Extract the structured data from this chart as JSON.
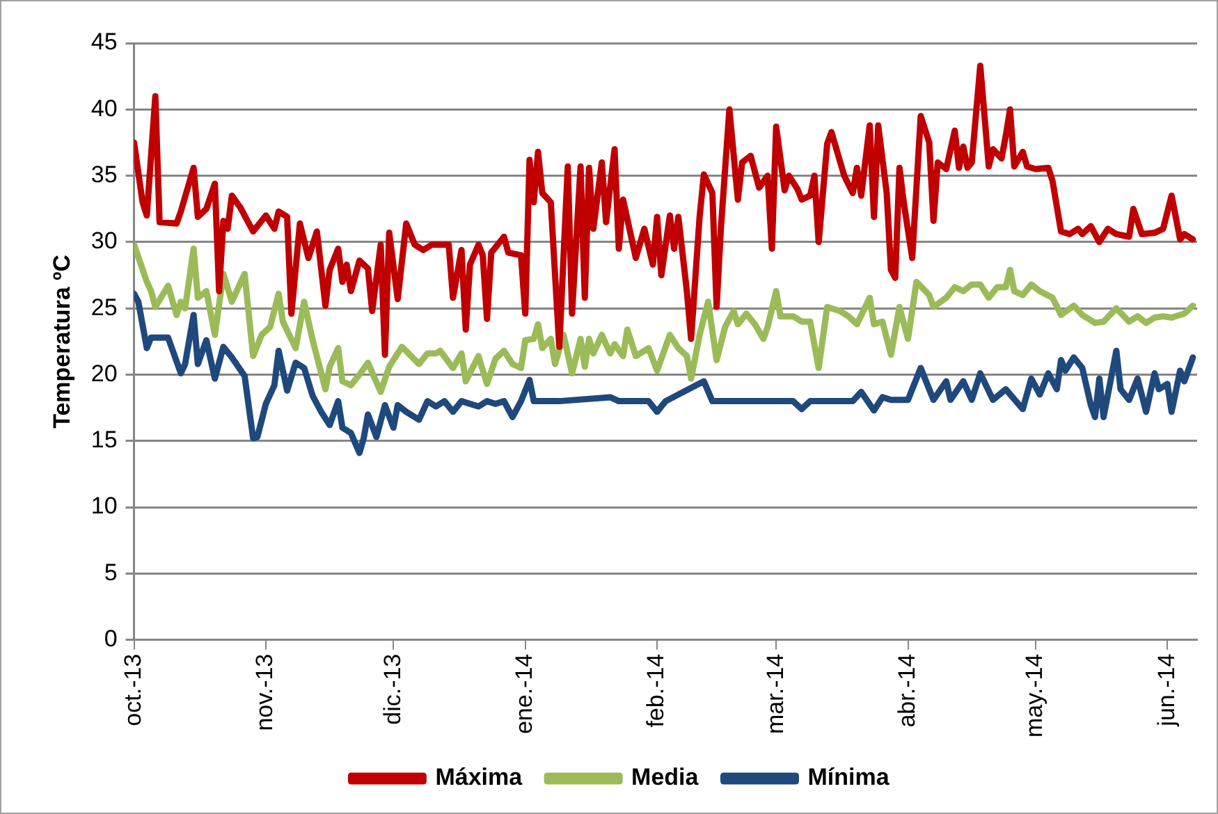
{
  "chart_data": {
    "type": "line",
    "ylabel": "Temperatura ºC",
    "xlim": [
      "2013-10-01",
      "2014-06-08"
    ],
    "xticks": [
      {
        "value": "2013-10-01",
        "label": "oct.-13"
      },
      {
        "value": "2013-11-01",
        "label": "nov.-13"
      },
      {
        "value": "2013-12-01",
        "label": "dic.-13"
      },
      {
        "value": "2014-01-01",
        "label": "ene.-14"
      },
      {
        "value": "2014-02-01",
        "label": "feb.-14"
      },
      {
        "value": "2014-03-01",
        "label": "mar.-14"
      },
      {
        "value": "2014-04-01",
        "label": "abr.-14"
      },
      {
        "value": "2014-05-01",
        "label": "may.-14"
      },
      {
        "value": "2014-06-01",
        "label": "jun.-14"
      }
    ],
    "ylim": [
      0,
      45
    ],
    "yticks": [
      0,
      5,
      10,
      15,
      20,
      25,
      30,
      35,
      40,
      45
    ],
    "grid": "y",
    "legend": "bottom",
    "marker": "none",
    "line_style": "solid",
    "series": [
      {
        "name": "Máxima",
        "color": "#c00000",
        "x": [
          "2013-10-01",
          "2013-10-03",
          "2013-10-04",
          "2013-10-06",
          "2013-10-07",
          "2013-10-11",
          "2013-10-12",
          "2013-10-15",
          "2013-10-16",
          "2013-10-18",
          "2013-10-20",
          "2013-10-21",
          "2013-10-22",
          "2013-10-23",
          "2013-10-24",
          "2013-10-26",
          "2013-10-29",
          "2013-11-01",
          "2013-11-03",
          "2013-11-04",
          "2013-11-06",
          "2013-11-07",
          "2013-11-09",
          "2013-11-11",
          "2013-11-13",
          "2013-11-15",
          "2013-11-16",
          "2013-11-18",
          "2013-11-19",
          "2013-11-20",
          "2013-11-21",
          "2013-11-23",
          "2013-11-25",
          "2013-11-26",
          "2013-11-28",
          "2013-11-29",
          "2013-11-30",
          "2013-12-02",
          "2013-12-04",
          "2013-12-06",
          "2013-12-08",
          "2013-12-10",
          "2013-12-12",
          "2013-12-14",
          "2013-12-15",
          "2013-12-17",
          "2013-12-18",
          "2013-12-19",
          "2013-12-21",
          "2013-12-22",
          "2013-12-23",
          "2013-12-24",
          "2013-12-27",
          "2013-12-28",
          "2013-12-31",
          "2014-01-01",
          "2014-01-02",
          "2014-01-03",
          "2014-01-04",
          "2014-01-05",
          "2014-01-07",
          "2014-01-09",
          "2014-01-11",
          "2014-01-12",
          "2014-01-14",
          "2014-01-15",
          "2014-01-16",
          "2014-01-17",
          "2014-01-19",
          "2014-01-20",
          "2014-01-22",
          "2014-01-23",
          "2014-01-24",
          "2014-01-27",
          "2014-01-29",
          "2014-01-31",
          "2014-02-01",
          "2014-02-02",
          "2014-02-04",
          "2014-02-05",
          "2014-02-06",
          "2014-02-08",
          "2014-02-09",
          "2014-02-11",
          "2014-02-12",
          "2014-02-14",
          "2014-02-15",
          "2014-02-16",
          "2014-02-18",
          "2014-02-20",
          "2014-02-21",
          "2014-02-23",
          "2014-02-25",
          "2014-02-27",
          "2014-02-28",
          "2014-03-01",
          "2014-03-03",
          "2014-03-04",
          "2014-03-06",
          "2014-03-07",
          "2014-03-09",
          "2014-03-10",
          "2014-03-11",
          "2014-03-13",
          "2014-03-14",
          "2014-03-17",
          "2014-03-19",
          "2014-03-20",
          "2014-03-21",
          "2014-03-23",
          "2014-03-24",
          "2014-03-25",
          "2014-03-27",
          "2014-03-28",
          "2014-03-29",
          "2014-03-30",
          "2014-03-31",
          "2014-04-02",
          "2014-04-04",
          "2014-04-06",
          "2014-04-07",
          "2014-04-08",
          "2014-04-10",
          "2014-04-12",
          "2014-04-13",
          "2014-04-14",
          "2014-04-15",
          "2014-04-16",
          "2014-04-18",
          "2014-04-20",
          "2014-04-21",
          "2014-04-23",
          "2014-04-24",
          "2014-04-25",
          "2014-04-26",
          "2014-04-28",
          "2014-04-29",
          "2014-05-01",
          "2014-05-04",
          "2014-05-05",
          "2014-05-07",
          "2014-05-09",
          "2014-05-11",
          "2014-05-12",
          "2014-05-14",
          "2014-05-16",
          "2014-05-18",
          "2014-05-20",
          "2014-05-23",
          "2014-05-24",
          "2014-05-26",
          "2014-05-29",
          "2014-05-31",
          "2014-06-02",
          "2014-06-04",
          "2014-06-05",
          "2014-06-07"
        ],
        "values": [
          37.5,
          33,
          32,
          41,
          31.5,
          31.4,
          32.3,
          35.6,
          31.9,
          32.5,
          34.4,
          26.3,
          31.6,
          31,
          33.5,
          32.6,
          30.8,
          32,
          31,
          32.3,
          31.9,
          24.6,
          31.4,
          28.8,
          30.8,
          25.2,
          27.9,
          29.5,
          27,
          28.3,
          26.3,
          28.6,
          28,
          24.8,
          29.8,
          21.5,
          30.7,
          25.7,
          31.4,
          29.8,
          29.4,
          29.8,
          29.8,
          29.8,
          25.8,
          29.4,
          23.4,
          28.3,
          29.8,
          29,
          24.2,
          29.2,
          30.4,
          29.2,
          29,
          24.6,
          36.2,
          33,
          36.8,
          33.7,
          33,
          22.1,
          35.7,
          24.6,
          35.7,
          25.8,
          35.6,
          31,
          36,
          31.5,
          37,
          29.5,
          33.2,
          28.8,
          31,
          28.3,
          31.9,
          27.5,
          32,
          29.5,
          31.9,
          26.3,
          22.7,
          31.9,
          35.1,
          33.7,
          25.1,
          31,
          40,
          33.2,
          36,
          36.5,
          34.1,
          35,
          29.5,
          38.7,
          33.9,
          35,
          34,
          33.2,
          33.5,
          35,
          30,
          37.4,
          38.3,
          35,
          33.7,
          35.6,
          33.5,
          38.8,
          31.9,
          38.8,
          33.7,
          27.9,
          27.3,
          35.6,
          33,
          28.8,
          39.5,
          37.5,
          31.6,
          36,
          35.5,
          38.4,
          35.6,
          37.2,
          35.6,
          36,
          43.3,
          35.7,
          37,
          36.3,
          38,
          40,
          35.7,
          36.8,
          35.7,
          35.5,
          35.6,
          34.6,
          30.8,
          30.6,
          31,
          30.6,
          31.2,
          30,
          31,
          30.6,
          30.4,
          32.5,
          30.6,
          30.7,
          31,
          33.5,
          30.2,
          30.6,
          30.2
        ]
      },
      {
        "name": "Media",
        "color": "#9bbb59",
        "x": [
          "2013-10-01",
          "2013-10-04",
          "2013-10-05",
          "2013-10-06",
          "2013-10-09",
          "2013-10-11",
          "2013-10-12",
          "2013-10-13",
          "2013-10-15",
          "2013-10-16",
          "2013-10-18",
          "2013-10-20",
          "2013-10-22",
          "2013-10-24",
          "2013-10-27",
          "2013-10-29",
          "2013-10-31",
          "2013-11-02",
          "2013-11-04",
          "2013-11-05",
          "2013-11-08",
          "2013-11-10",
          "2013-11-12",
          "2013-11-15",
          "2013-11-16",
          "2013-11-18",
          "2013-11-19",
          "2013-11-21",
          "2013-11-23",
          "2013-11-25",
          "2013-11-28",
          "2013-11-30",
          "2013-12-03",
          "2013-12-07",
          "2013-12-09",
          "2013-12-11",
          "2013-12-12",
          "2013-12-15",
          "2013-12-17",
          "2013-12-18",
          "2013-12-21",
          "2013-12-23",
          "2013-12-25",
          "2013-12-27",
          "2013-12-29",
          "2013-12-31",
          "2014-01-01",
          "2014-01-03",
          "2014-01-04",
          "2014-01-05",
          "2014-01-07",
          "2014-01-08",
          "2014-01-10",
          "2014-01-12",
          "2014-01-14",
          "2014-01-15",
          "2014-01-16",
          "2014-01-17",
          "2014-01-19",
          "2014-01-21",
          "2014-01-22",
          "2014-01-24",
          "2014-01-25",
          "2014-01-27",
          "2014-01-30",
          "2014-02-01",
          "2014-02-04",
          "2014-02-06",
          "2014-02-08",
          "2014-02-09",
          "2014-02-11",
          "2014-02-13",
          "2014-02-15",
          "2014-02-17",
          "2014-02-19",
          "2014-02-20",
          "2014-02-22",
          "2014-02-24",
          "2014-02-26",
          "2014-02-27",
          "2014-03-01",
          "2014-03-02",
          "2014-03-05",
          "2014-03-07",
          "2014-03-09",
          "2014-03-11",
          "2014-03-13",
          "2014-03-16",
          "2014-03-18",
          "2014-03-20",
          "2014-03-23",
          "2014-03-24",
          "2014-03-26",
          "2014-03-28",
          "2014-03-30",
          "2014-04-01",
          "2014-04-03",
          "2014-04-06",
          "2014-04-07",
          "2014-04-10",
          "2014-04-12",
          "2014-04-14",
          "2014-04-16",
          "2014-04-18",
          "2014-04-20",
          "2014-04-22",
          "2014-04-24",
          "2014-04-25",
          "2014-04-26",
          "2014-04-28",
          "2014-04-30",
          "2014-05-02",
          "2014-05-05",
          "2014-05-07",
          "2014-05-10",
          "2014-05-12",
          "2014-05-15",
          "2014-05-17",
          "2014-05-20",
          "2014-05-23",
          "2014-05-25",
          "2014-05-27",
          "2014-05-29",
          "2014-05-31",
          "2014-06-02",
          "2014-06-05",
          "2014-06-07"
        ],
        "values": [
          29.8,
          27,
          26.3,
          25.1,
          26.7,
          24.5,
          25.5,
          25,
          29.5,
          25.8,
          26.3,
          23,
          27.6,
          25.5,
          27.6,
          21.4,
          23,
          23.6,
          26.1,
          24,
          22,
          25.5,
          22.6,
          18.9,
          20.6,
          22,
          19.5,
          19.2,
          20,
          20.9,
          18.7,
          20.6,
          22.1,
          20.8,
          21.6,
          21.6,
          21.8,
          20.5,
          21.6,
          19.5,
          21.4,
          19.3,
          21.2,
          21.8,
          20.8,
          20.5,
          22.6,
          22.7,
          23.8,
          22,
          22.7,
          20.8,
          23,
          20.1,
          22.7,
          20.6,
          22.7,
          21.6,
          23,
          21.6,
          22.3,
          21.4,
          23.4,
          21.4,
          22,
          20.3,
          23,
          22,
          21.4,
          19.7,
          23,
          25.5,
          21.1,
          23.6,
          24.8,
          23.8,
          24.6,
          23.8,
          22.7,
          23.6,
          26.3,
          24.4,
          24.4,
          24,
          24,
          20.5,
          25.1,
          24.8,
          24.4,
          23.8,
          25.8,
          23.8,
          24,
          21.5,
          25.1,
          22.7,
          27,
          26,
          25.1,
          25.8,
          26.6,
          26.3,
          26.8,
          26.8,
          25.8,
          26.6,
          26.6,
          27.9,
          26.3,
          26,
          26.8,
          26.3,
          25.8,
          24.5,
          25.2,
          24.5,
          23.9,
          24,
          25,
          24,
          24.4,
          23.9,
          24.3,
          24.4,
          24.3,
          24.6,
          25.2
        ]
      },
      {
        "name": "Mínima",
        "color": "#1f497d",
        "x": [
          "2013-10-01",
          "2013-10-02",
          "2013-10-04",
          "2013-10-05",
          "2013-10-09",
          "2013-10-12",
          "2013-10-13",
          "2013-10-15",
          "2013-10-16",
          "2013-10-18",
          "2013-10-20",
          "2013-10-22",
          "2013-10-24",
          "2013-10-27",
          "2013-10-29",
          "2013-10-30",
          "2013-11-01",
          "2013-11-03",
          "2013-11-04",
          "2013-11-06",
          "2013-11-08",
          "2013-11-10",
          "2013-11-12",
          "2013-11-14",
          "2013-11-16",
          "2013-11-18",
          "2013-11-19",
          "2013-11-21",
          "2013-11-23",
          "2013-11-24",
          "2013-11-25",
          "2013-11-27",
          "2013-11-29",
          "2013-12-01",
          "2013-12-02",
          "2013-12-04",
          "2013-12-07",
          "2013-12-09",
          "2013-12-11",
          "2013-12-13",
          "2013-12-15",
          "2013-12-17",
          "2013-12-21",
          "2013-12-23",
          "2013-12-25",
          "2013-12-27",
          "2013-12-29",
          "2013-12-31",
          "2014-01-02",
          "2014-01-03",
          "2014-01-09",
          "2014-01-21",
          "2014-01-23",
          "2014-01-30",
          "2014-02-01",
          "2014-02-03",
          "2014-02-12",
          "2014-02-14",
          "2014-03-05",
          "2014-03-07",
          "2014-03-09",
          "2014-03-19",
          "2014-03-21",
          "2014-03-24",
          "2014-03-26",
          "2014-03-28",
          "2014-04-01",
          "2014-04-04",
          "2014-04-06",
          "2014-04-07",
          "2014-04-10",
          "2014-04-11",
          "2014-04-14",
          "2014-04-16",
          "2014-04-18",
          "2014-04-21",
          "2014-04-24",
          "2014-04-28",
          "2014-04-30",
          "2014-05-02",
          "2014-05-04",
          "2014-05-06",
          "2014-05-07",
          "2014-05-08",
          "2014-05-10",
          "2014-05-12",
          "2014-05-14",
          "2014-05-15",
          "2014-05-16",
          "2014-05-17",
          "2014-05-20",
          "2014-05-21",
          "2014-05-23",
          "2014-05-25",
          "2014-05-27",
          "2014-05-29",
          "2014-05-30",
          "2014-06-01",
          "2014-06-02",
          "2014-06-04",
          "2014-06-05",
          "2014-06-07"
        ],
        "values": [
          26.1,
          25.5,
          22,
          22.8,
          22.8,
          20.1,
          20.8,
          24.5,
          20.8,
          22.6,
          19.7,
          22.1,
          21.3,
          19.9,
          15.2,
          15.3,
          17.8,
          19.2,
          21.8,
          18.8,
          20.9,
          20.5,
          18.4,
          17.2,
          16.2,
          18,
          16,
          15.6,
          14.1,
          15.2,
          17,
          15.3,
          17.7,
          16,
          17.7,
          17.2,
          16.6,
          18,
          17.6,
          18,
          17.2,
          18,
          17.6,
          18,
          17.8,
          18,
          16.8,
          18,
          19.6,
          18,
          18,
          18.3,
          18,
          18,
          17.2,
          18,
          19.5,
          18,
          18,
          17.4,
          18,
          18,
          18.7,
          17.3,
          18.3,
          18.1,
          18.1,
          20.5,
          18.9,
          18.1,
          19.5,
          18.1,
          19.5,
          18.1,
          20.1,
          18.1,
          18.9,
          17.4,
          19.7,
          18.5,
          20.1,
          18.9,
          21.1,
          20.3,
          21.3,
          20.5,
          17.7,
          16.8,
          19.7,
          16.8,
          21.8,
          18.9,
          18.1,
          19.7,
          17.2,
          20.1,
          18.9,
          19.3,
          17.2,
          20.3,
          19.5,
          21.3
        ]
      }
    ]
  }
}
